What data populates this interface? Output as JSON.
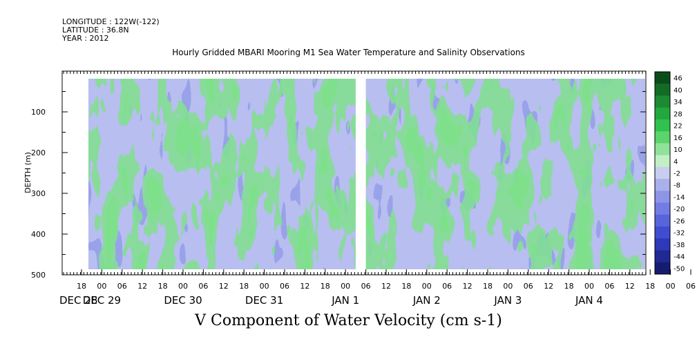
{
  "header": {
    "longitude": "LONGITUDE : 122W(-122)",
    "latitude": "LATITUDE : 36.8N",
    "year": "YEAR : 2012"
  },
  "chart_data": {
    "type": "heatmap",
    "title": "Hourly Gridded MBARI Mooring M1 Sea Water Temperature and Salinity Observations",
    "xlabel": "",
    "ylabel": "DEPTH (m)",
    "footer_label": "V Component of Water Velocity (cm s-1)",
    "ylim": [
      500,
      0
    ],
    "yticks": [
      100,
      200,
      300,
      400,
      500
    ],
    "x_hour_ticks": [
      "18",
      "00",
      "06",
      "12",
      "18",
      "00",
      "06",
      "12",
      "18",
      "00",
      "06",
      "12",
      "18",
      "00",
      "06",
      "12",
      "18",
      "00",
      "06",
      "12",
      "18",
      "00",
      "06",
      "12",
      "18",
      "00",
      "06",
      "12",
      "18",
      "00",
      "06",
      "12"
    ],
    "date_labels": [
      "DEC 28",
      "DEC 29",
      "DEC 30",
      "DEC 31",
      "JAN  1",
      "JAN  2",
      "JAN  3",
      "JAN  4"
    ],
    "colorbar_levels": [
      "46",
      "40",
      "34",
      "28",
      "22",
      "16",
      "10",
      "4",
      "-2",
      "-8",
      "-14",
      "-20",
      "-26",
      "-32",
      "-38",
      "-44",
      "-50"
    ],
    "colorbar_colors": [
      "#0b4d1a",
      "#146b26",
      "#1c8a32",
      "#22a83e",
      "#2fc24f",
      "#5ad46c",
      "#8fe29a",
      "#c2efc6",
      "#c9cdef",
      "#a9b0ea",
      "#8c95e6",
      "#727ce2",
      "#5765dc",
      "#3f4dd1",
      "#2d39b8",
      "#1f2994",
      "#151c70"
    ],
    "data_gaps_hours_from_start": [
      [
        -12,
        -9
      ],
      [
        81,
        84
      ],
      [
        264,
        267
      ],
      [
        302,
        306
      ]
    ]
  }
}
